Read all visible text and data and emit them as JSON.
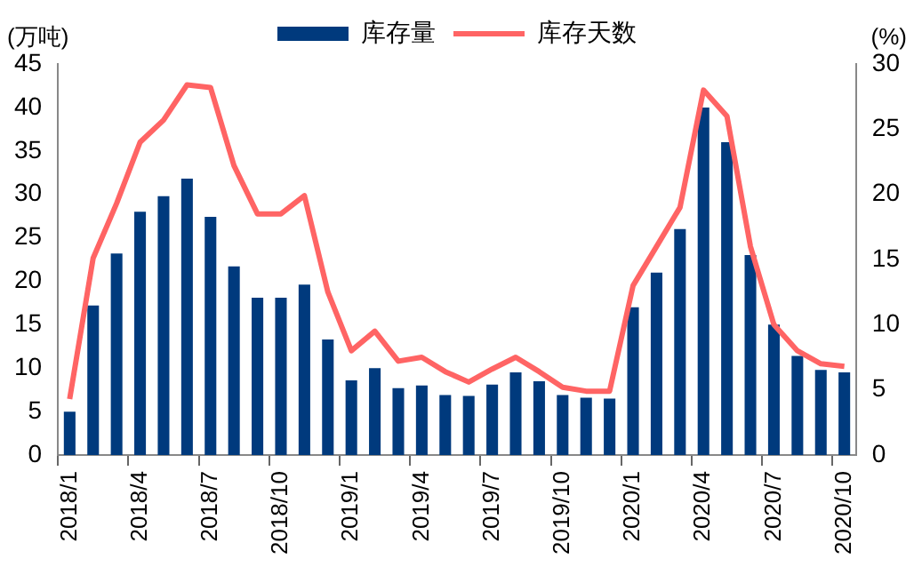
{
  "chart_data": {
    "type": "bar",
    "ylabel": "(万吨)",
    "y2label": "(%)",
    "categories": [
      "2018/1",
      null,
      null,
      "2018/4",
      null,
      null,
      "2018/7",
      null,
      null,
      "2018/10",
      null,
      null,
      "2019/1",
      null,
      null,
      "2019/4",
      null,
      null,
      "2019/7",
      null,
      null,
      "2019/10",
      null,
      null,
      "2020/1",
      null,
      null,
      "2020/4",
      null,
      null,
      "2020/7",
      null,
      null,
      "2020/10"
    ],
    "series": [
      {
        "name": "库存量",
        "color": "#003a7d",
        "values": [
          5,
          17.2,
          23.2,
          28,
          29.8,
          31.8,
          27.4,
          21.7,
          18.1,
          18.1,
          19.6,
          13.3,
          8.6,
          10,
          7.7,
          8,
          6.9,
          6.8,
          8.1,
          9.5,
          8.5,
          6.9,
          6.6,
          6.5,
          17,
          21,
          26,
          40,
          36,
          23,
          15,
          11.4,
          9.8,
          9.5
        ]
      },
      {
        "name": "库存天数",
        "type": "line",
        "axis": "y2",
        "color": "#ff6464",
        "values": [
          4.3,
          15.1,
          19.3,
          24,
          25.7,
          28.4,
          28.2,
          22.2,
          18.5,
          18.5,
          19.9,
          12.5,
          8,
          9.5,
          7.2,
          7.5,
          6.4,
          5.6,
          6.6,
          7.5,
          6.4,
          5.2,
          4.9,
          4.9,
          13,
          16,
          19,
          28,
          26,
          16,
          10,
          8,
          7,
          6.8
        ]
      }
    ],
    "ylim": [
      0,
      45
    ],
    "yticks": [
      0,
      5,
      10,
      15,
      20,
      25,
      30,
      35,
      40,
      45
    ],
    "y2lim": [
      0,
      30
    ],
    "y2ticks": [
      0,
      5,
      10,
      15,
      20,
      25,
      30
    ],
    "legend": "top",
    "grid": false
  }
}
